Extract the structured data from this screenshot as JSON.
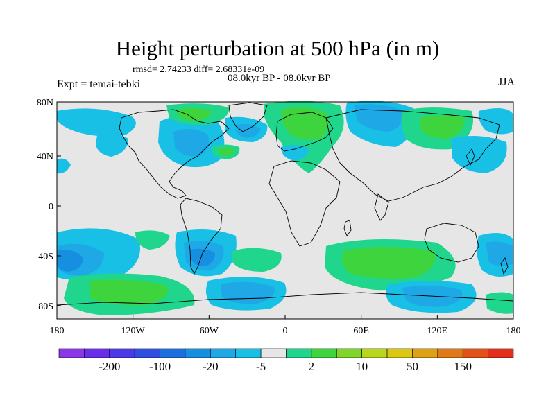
{
  "title": "Height perturbation at 500 hPa (in m)",
  "stats_text": "rmsd= 2.74233 diff= 2.68331e-09",
  "period_text": "08.0kyr BP - 08.0kyr BP",
  "experiment_text": "Expt = temai-tebki",
  "season": "JJA",
  "lat_labels": [
    "80N",
    "40N",
    "0",
    "40S",
    "80S"
  ],
  "lon_labels": [
    "180",
    "120W",
    "60W",
    "0",
    "60E",
    "120E",
    "180"
  ],
  "colorbar": {
    "colors": [
      "#8d36e8",
      "#6a2de8",
      "#4a3ae8",
      "#2f4fe0",
      "#1c6fe0",
      "#168fe0",
      "#1ea8e6",
      "#18c0e6",
      "#e6e6e6",
      "#20d68c",
      "#3ed43e",
      "#7ed628",
      "#b8d61c",
      "#dcc812",
      "#e0a014",
      "#e07a18",
      "#e25218",
      "#e62e1c"
    ],
    "labels": [
      "-200",
      "-100",
      "-20",
      "-5",
      "2",
      "10",
      "50",
      "150"
    ]
  },
  "field_colors": {
    "land": "#000000",
    "ocean_background": "#e6e6e6"
  }
}
